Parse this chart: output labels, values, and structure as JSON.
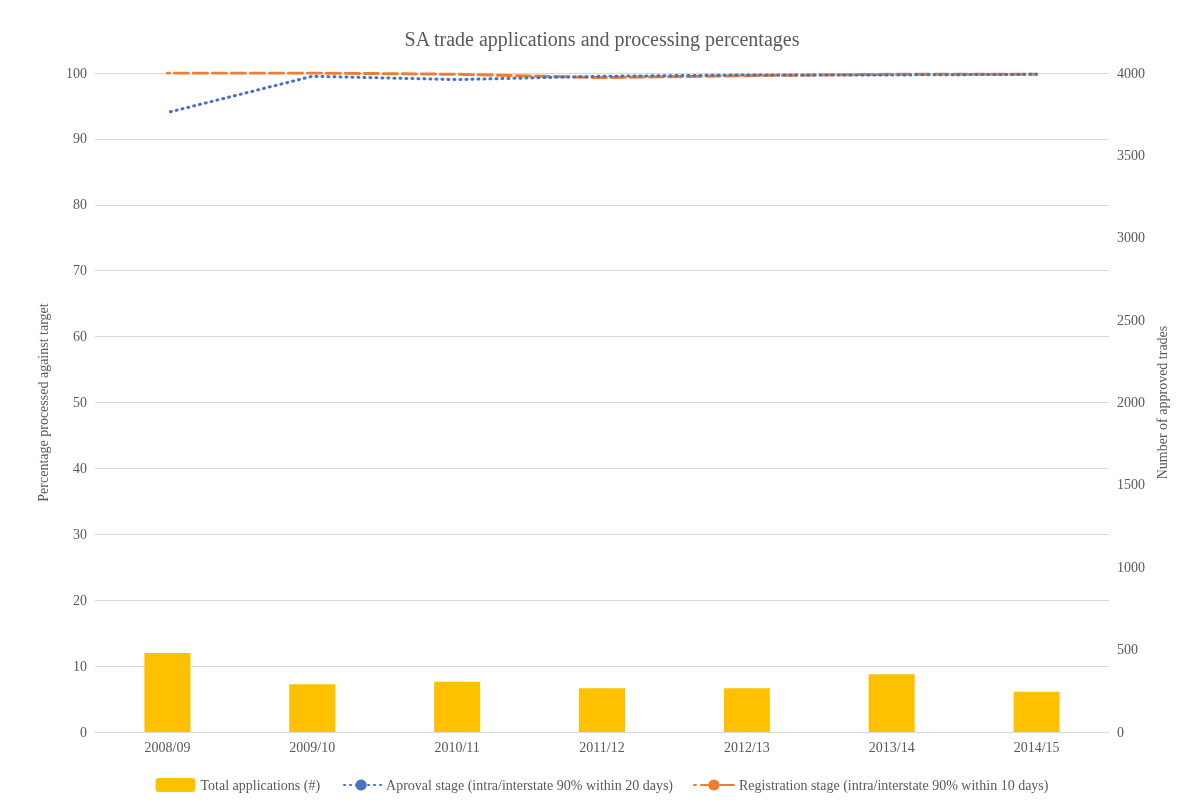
{
  "chart_data": {
    "type": "bar",
    "title": "SA trade applications and processing percentages",
    "ylabel": "Percentage processed against target",
    "y2label": "Number of approved trades",
    "categories": [
      "2008/09",
      "2009/10",
      "2010/11",
      "2011/12",
      "2012/13",
      "2013/14",
      "2014/15"
    ],
    "series": [
      {
        "name": "Total applications (#)",
        "axis": "y2",
        "color": "#ffc000",
        "values": [
          480,
          290,
          305,
          265,
          265,
          350,
          245
        ]
      },
      {
        "name": "Aproval stage (intra/interstate 90% within 20 days)",
        "type": "line",
        "line_style": "dotted",
        "color": "#4472c4",
        "values": [
          94,
          99.5,
          99,
          99.5,
          99.7,
          99.7,
          99.8
        ]
      },
      {
        "name": "Registration stage (intra/interstate 90% within 10 days)",
        "type": "line",
        "line_style": "dashed",
        "color": "#ed7d31",
        "values": [
          100,
          100,
          99.8,
          99.3,
          99.6,
          99.8,
          99.8
        ]
      }
    ],
    "ylim": [
      0,
      100
    ],
    "yticks": [
      0,
      10,
      20,
      30,
      40,
      50,
      60,
      70,
      80,
      90,
      100
    ],
    "y2lim": [
      0,
      4000
    ],
    "y2ticks": [
      0,
      500,
      1000,
      1500,
      2000,
      2500,
      3000,
      3500,
      4000
    ],
    "grid": "y",
    "legend": "bottom",
    "marker": "none"
  }
}
